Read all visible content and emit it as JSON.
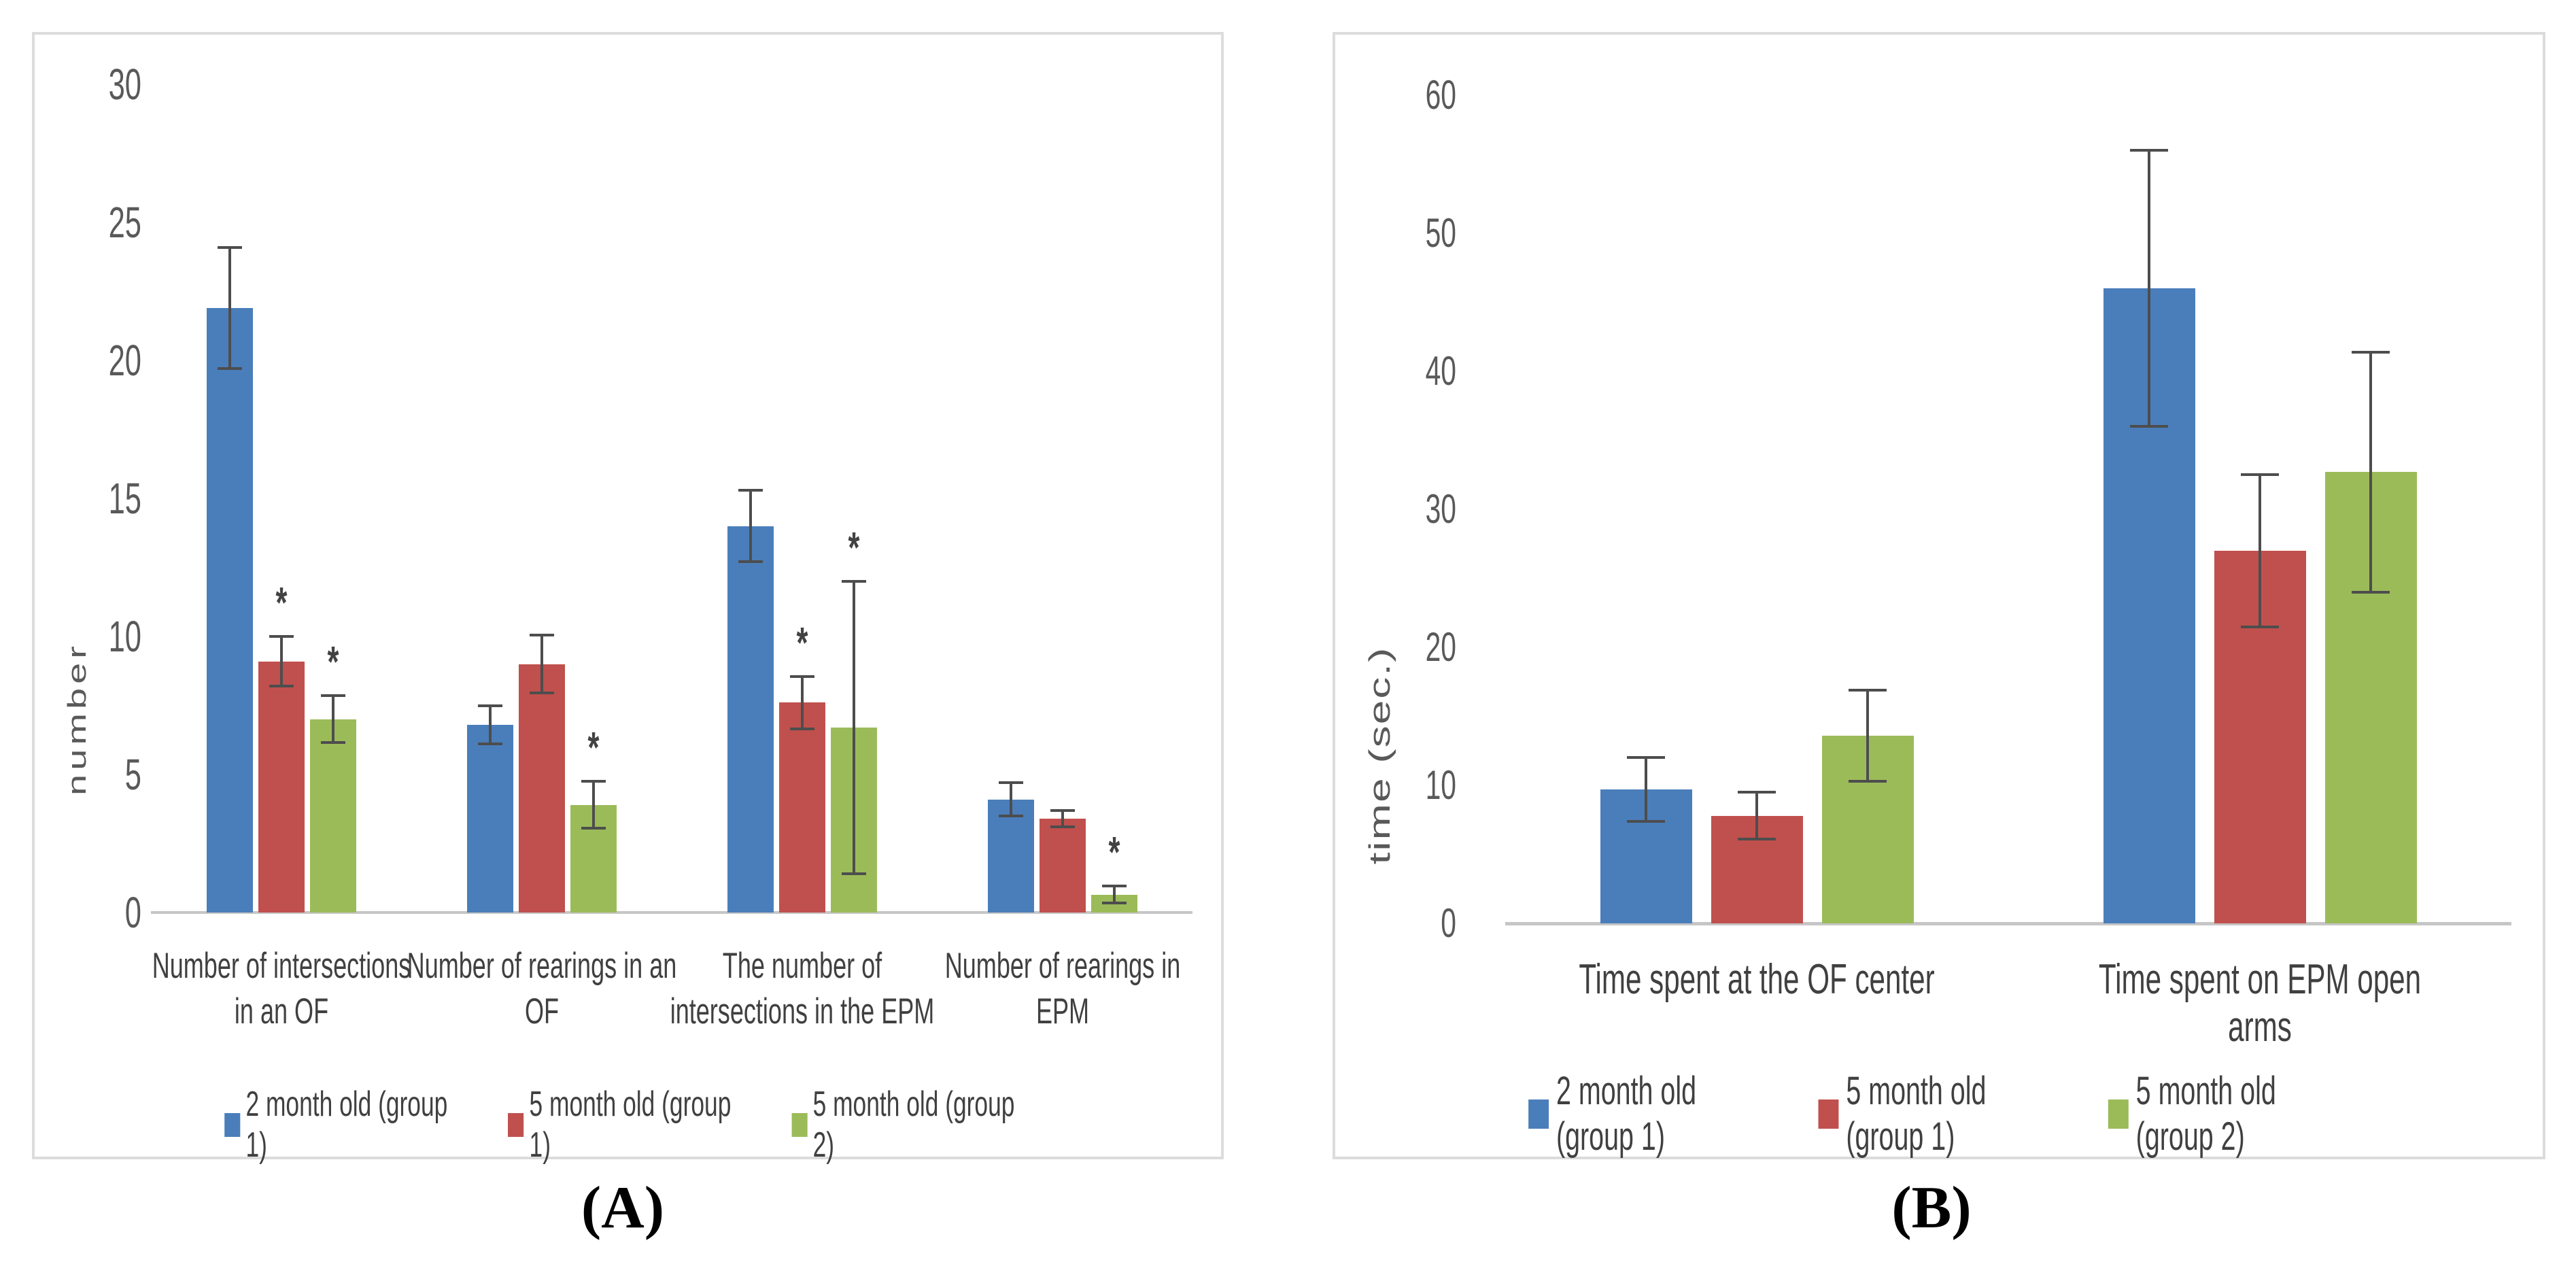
{
  "figure": {
    "panel_a_caption": "(A)",
    "panel_b_caption": "(B)",
    "significance_marker": "*"
  },
  "colors": {
    "series_blue": "#4A7EBB",
    "series_red": "#C0504D",
    "series_green": "#9BBB59",
    "error_bar": "#4D4D4D",
    "axis_text": "#595959",
    "label_text": "#404040",
    "baseline": "#C6C6C6",
    "panel_border": "#DCDCDC"
  },
  "chart_data": [
    {
      "type": "bar",
      "panel": "A",
      "title": "",
      "xlabel": "",
      "ylabel": "number",
      "ylim": [
        0,
        30
      ],
      "yticks": [
        0,
        5,
        10,
        15,
        20,
        25,
        30
      ],
      "grid": false,
      "legend_position": "bottom",
      "error_bars": true,
      "categories": [
        {
          "label": "Number of intersections in an OF",
          "lines": [
            "Number of intersections",
            "in an OF"
          ]
        },
        {
          "label": "Number of rearings in an OF",
          "lines": [
            "Number of rearings in an",
            "OF"
          ]
        },
        {
          "label": "The number of intersections in the EPM",
          "lines": [
            "The number of",
            "intersections in the EPM"
          ]
        },
        {
          "label": "Number of rearings in EPM",
          "lines": [
            "Number of rearings in",
            "EPM"
          ]
        }
      ],
      "series": [
        {
          "name": "2 month old (group 1)",
          "color": "#4A7EBB",
          "values": [
            21.9,
            6.8,
            14.0,
            4.1
          ],
          "errors": [
            2.2,
            0.7,
            1.3,
            0.6
          ],
          "significant": [
            false,
            false,
            false,
            false
          ]
        },
        {
          "name": "5 month old (group 1)",
          "color": "#C0504D",
          "values": [
            9.1,
            9.0,
            7.6,
            3.4
          ],
          "errors": [
            0.9,
            1.05,
            0.95,
            0.3
          ],
          "significant": [
            true,
            false,
            true,
            false
          ]
        },
        {
          "name": "5 month old (group 2)",
          "color": "#9BBB59",
          "values": [
            7.0,
            3.9,
            6.7,
            0.65
          ],
          "errors": [
            0.85,
            0.85,
            5.3,
            0.3
          ],
          "significant": [
            true,
            true,
            true,
            true
          ]
        }
      ]
    },
    {
      "type": "bar",
      "panel": "B",
      "title": "",
      "xlabel": "",
      "ylabel": "time (sec.)",
      "ylim": [
        0,
        60
      ],
      "yticks": [
        0,
        10,
        20,
        30,
        40,
        50,
        60
      ],
      "grid": false,
      "legend_position": "bottom",
      "error_bars": true,
      "categories": [
        {
          "label": "Time spent at the OF center",
          "lines": [
            "Time spent at the OF center"
          ]
        },
        {
          "label": "Time spent on EPM open arms",
          "lines": [
            "Time spent on EPM open arms"
          ]
        }
      ],
      "series": [
        {
          "name": "2 month old (group 1)",
          "color": "#4A7EBB",
          "values": [
            9.7,
            46.0
          ],
          "errors": [
            2.3,
            10.0
          ],
          "significant": [
            false,
            false
          ]
        },
        {
          "name": "5 month old (group 1)",
          "color": "#C0504D",
          "values": [
            7.8,
            27.0
          ],
          "errors": [
            1.7,
            5.5
          ],
          "significant": [
            false,
            false
          ]
        },
        {
          "name": "5 month old (group 2)",
          "color": "#9BBB59",
          "values": [
            13.6,
            32.7
          ],
          "errors": [
            3.3,
            8.7
          ],
          "significant": [
            false,
            false
          ]
        }
      ]
    }
  ]
}
